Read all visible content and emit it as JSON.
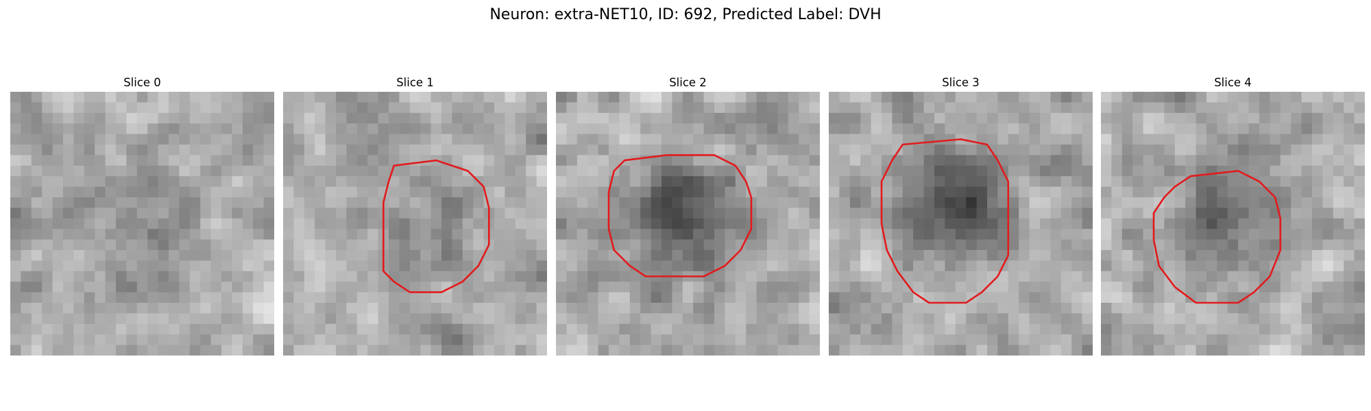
{
  "figure": {
    "title": "Neuron: extra-NET10, ID: 692, Predicted Label: DVH"
  },
  "panels": [
    {
      "title": "Slice 0",
      "has_contour": false
    },
    {
      "title": "Slice 1",
      "has_contour": true
    },
    {
      "title": "Slice 2",
      "has_contour": true
    },
    {
      "title": "Slice 3",
      "has_contour": true
    },
    {
      "title": "Slice 4",
      "has_contour": true
    }
  ],
  "image": {
    "colormap": "grayscale",
    "contour_color": "#e31a1c"
  }
}
